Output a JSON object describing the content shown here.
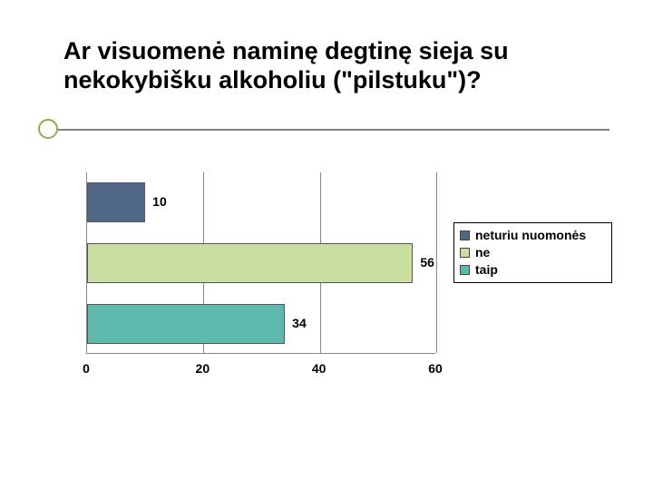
{
  "title": "Ar visuomenė naminę degtinę sieja su nekokybišku alkoholiu (\"pilstuku\")?",
  "chart": {
    "type": "bar",
    "orientation": "horizontal",
    "categories": [
      "neturiu nuomonės",
      "ne",
      "taip"
    ],
    "values": [
      10,
      56,
      34
    ],
    "bar_colors": [
      "#4f6685",
      "#cadf9f",
      "#5db9ac"
    ],
    "xlim": [
      0,
      60
    ],
    "xtick_step": 20,
    "xticks": [
      0,
      20,
      40,
      60
    ],
    "background_color": "#ffffff",
    "grid_color": "#878787",
    "axis_color": "#878787",
    "label_fontsize": 14,
    "label_fontweight": "bold",
    "bar_height_ratio": 0.66
  },
  "legend": {
    "items": [
      {
        "label": "neturiu nuomonės",
        "color": "#4f6685"
      },
      {
        "label": "ne",
        "color": "#cadf9f"
      },
      {
        "label": "taip",
        "color": "#5db9ac"
      }
    ]
  },
  "decor": {
    "line_color": "#828282",
    "bullet_border": "#8fae4f"
  }
}
